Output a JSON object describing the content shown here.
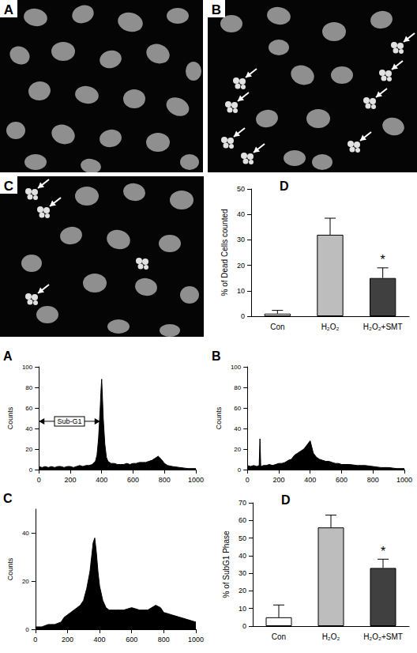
{
  "images": [
    {
      "panel": "A"
    },
    {
      "panel": "B"
    },
    {
      "panel": "C"
    }
  ],
  "chart_data": [
    {
      "type": "bar",
      "panel": "D",
      "categories": [
        "Con",
        "H₂O₂",
        "H₂O₂+SMT"
      ],
      "values": [
        1,
        32,
        15
      ],
      "errors": [
        1.3,
        6.5,
        4
      ],
      "colors": [
        "#ffffff",
        "#bdbdbd",
        "#404040"
      ],
      "y_label": "% of Dead Cells counted",
      "ylim": [
        0,
        50
      ],
      "yticks": [
        0,
        10,
        20,
        30,
        40,
        50
      ],
      "annotations": [
        {
          "text": "*",
          "category": "H₂O₂+SMT"
        }
      ]
    },
    {
      "type": "area",
      "panel": "A",
      "color": "#000000",
      "y_label": "Counts",
      "x": [
        0,
        20,
        40,
        60,
        80,
        100,
        120,
        140,
        160,
        180,
        200,
        220,
        240,
        260,
        280,
        300,
        320,
        340,
        360,
        370,
        380,
        390,
        395,
        400,
        405,
        410,
        420,
        430,
        440,
        460,
        480,
        500,
        520,
        540,
        560,
        580,
        600,
        620,
        640,
        660,
        680,
        700,
        720,
        740,
        760,
        780,
        800,
        820,
        850,
        900,
        950,
        1000
      ],
      "values": [
        3,
        2,
        3,
        2,
        3,
        2,
        3,
        3,
        2,
        3,
        3,
        2,
        3,
        4,
        3,
        4,
        4,
        5,
        8,
        14,
        30,
        58,
        75,
        88,
        70,
        50,
        25,
        12,
        8,
        6,
        6,
        5,
        5,
        5,
        6,
        5,
        6,
        6,
        7,
        7,
        7,
        8,
        9,
        11,
        13,
        10,
        6,
        4,
        3,
        2,
        1,
        1
      ],
      "xlim": [
        0,
        1000
      ],
      "xticks": [
        0,
        200,
        400,
        600,
        800,
        1000
      ],
      "ylim": [
        0,
        100
      ],
      "yticks": [
        0,
        20,
        40,
        60,
        80,
        100
      ],
      "annotations": [
        {
          "text": "Sub-G1",
          "x_start": 0,
          "x_end": 390,
          "y": 47
        }
      ]
    },
    {
      "type": "area",
      "panel": "B",
      "color": "#000000",
      "y_label": "Counts",
      "x": [
        0,
        20,
        40,
        60,
        75,
        80,
        85,
        90,
        100,
        120,
        140,
        160,
        180,
        200,
        220,
        240,
        260,
        280,
        300,
        320,
        340,
        360,
        380,
        400,
        410,
        420,
        440,
        460,
        480,
        500,
        520,
        540,
        560,
        580,
        600,
        650,
        700,
        750,
        800,
        850,
        900,
        950,
        1000
      ],
      "values": [
        4,
        3,
        4,
        3,
        4,
        30,
        4,
        3,
        4,
        4,
        5,
        4,
        5,
        6,
        6,
        7,
        9,
        10,
        14,
        16,
        18,
        20,
        24,
        28,
        22,
        16,
        12,
        10,
        9,
        8,
        8,
        7,
        6,
        6,
        5,
        5,
        4,
        4,
        3,
        2,
        2,
        1,
        1
      ],
      "xlim": [
        0,
        1000
      ],
      "xticks": [
        0,
        200,
        400,
        600,
        800,
        1000
      ],
      "ylim": [
        0,
        100
      ],
      "yticks": [
        0,
        20,
        40,
        60,
        80,
        100
      ]
    },
    {
      "type": "area",
      "panel": "C",
      "color": "#000000",
      "y_label": "Counts",
      "x": [
        0,
        40,
        80,
        120,
        160,
        180,
        200,
        220,
        240,
        260,
        280,
        300,
        320,
        340,
        350,
        360,
        370,
        380,
        390,
        400,
        420,
        440,
        460,
        500,
        550,
        600,
        650,
        700,
        750,
        780,
        800,
        850,
        900,
        950,
        1000
      ],
      "values": [
        1,
        1,
        2,
        2,
        3,
        5,
        6,
        7,
        8,
        9,
        10,
        12,
        17,
        24,
        30,
        36,
        38,
        32,
        24,
        18,
        12,
        9,
        8,
        8,
        8,
        9,
        8,
        8,
        10,
        9,
        7,
        6,
        5,
        4,
        3
      ],
      "xlim": [
        0,
        1000
      ],
      "xticks": [
        0,
        200,
        400,
        600,
        800,
        1000
      ],
      "ylim": [
        0,
        50
      ],
      "yticks": [
        0,
        20,
        40
      ]
    },
    {
      "type": "bar",
      "panel": "D",
      "categories": [
        "Con",
        "H₂O₂",
        "H₂O₂+SMT"
      ],
      "values": [
        5,
        56,
        33
      ],
      "errors": [
        7,
        7,
        5
      ],
      "colors": [
        "#ffffff",
        "#bdbdbd",
        "#404040"
      ],
      "y_label": "% of SubG1 Phase",
      "ylim": [
        0,
        70
      ],
      "yticks": [
        0,
        10,
        20,
        30,
        40,
        50,
        60,
        70
      ],
      "annotations": [
        {
          "text": "*",
          "category": "H₂O₂+SMT"
        }
      ]
    }
  ]
}
